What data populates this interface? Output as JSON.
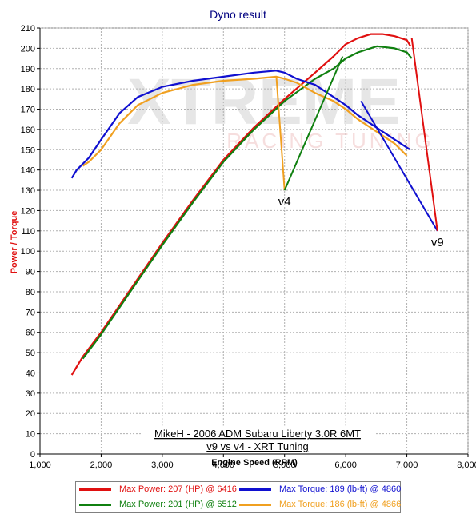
{
  "window": {
    "title": "Dyno result"
  },
  "chart_data": {
    "type": "line",
    "title": "Dyno result",
    "xlabel": "Engine Speed (RPM)",
    "ylabel": "Power / Torque",
    "xlim": [
      1000,
      8000
    ],
    "ylim": [
      0,
      210
    ],
    "xticks": [
      1000,
      2000,
      3000,
      4000,
      5000,
      6000,
      7000,
      8000
    ],
    "xtick_labels": [
      "1,000",
      "2,000",
      "3,000",
      "4,000",
      "5,000",
      "6,000",
      "7,000",
      "8,000"
    ],
    "yticks": [
      0,
      10,
      20,
      30,
      40,
      50,
      60,
      70,
      80,
      90,
      100,
      110,
      120,
      130,
      140,
      150,
      160,
      170,
      180,
      190,
      200,
      210
    ],
    "grid": true,
    "watermark": {
      "line1": "XTREME",
      "line2": "RACING TUNING"
    },
    "annotation_box": {
      "line1": "MikeH - 2006 ADM Subaru Liberty 3.0R 6MT",
      "line2": "v9 vs v4 - XRT Tuning"
    },
    "series": [
      {
        "name": "v9 power",
        "color": "#e01010",
        "x": [
          1520,
          1700,
          2000,
          2500,
          3000,
          3500,
          4000,
          4500,
          5000,
          5500,
          5800,
          6000,
          6200,
          6416,
          6600,
          6800,
          7000,
          7060
        ],
        "y": [
          39,
          48,
          60,
          82,
          104,
          125,
          145,
          161,
          175,
          188,
          196,
          202,
          205,
          207,
          207,
          206,
          204,
          201
        ]
      },
      {
        "name": "v4 power",
        "color": "#108010",
        "x": [
          1700,
          2000,
          2500,
          3000,
          3500,
          4000,
          4500,
          5000,
          5500,
          5800,
          6000,
          6200,
          6512,
          6800,
          7000,
          7080
        ],
        "y": [
          47,
          59,
          81,
          103,
          124,
          144,
          160,
          174,
          185,
          190,
          195,
          198,
          201,
          200,
          198,
          195
        ]
      },
      {
        "name": "v9 torque",
        "color": "#1010d0",
        "x": [
          1520,
          1600,
          1800,
          2000,
          2300,
          2600,
          3000,
          3500,
          4000,
          4500,
          4860,
          5000,
          5200,
          5500,
          5800,
          6000,
          6200,
          6500,
          6800,
          7000,
          7060
        ],
        "y": [
          136,
          140,
          146,
          155,
          168,
          176,
          181,
          184,
          186,
          188,
          189,
          188,
          185,
          182,
          176,
          172,
          167,
          161,
          155,
          151,
          150
        ]
      },
      {
        "name": "v4 torque",
        "color": "#f0a020",
        "x": [
          1700,
          1800,
          2000,
          2300,
          2600,
          3000,
          3500,
          4000,
          4500,
          4866,
          5000,
          5200,
          5500,
          5800,
          6000,
          6200,
          6500,
          6800,
          7000
        ],
        "y": [
          142,
          144,
          150,
          163,
          172,
          178,
          182,
          184,
          185,
          186,
          185,
          183,
          178,
          174,
          170,
          165,
          159,
          153,
          147
        ]
      }
    ],
    "point_labels": [
      {
        "text": "v4",
        "x": 5000,
        "y": 130,
        "color": "#000000",
        "leaders": [
          {
            "to_x": 4866,
            "to_y": 186,
            "color": "#f0a020"
          },
          {
            "to_x": 5950,
            "to_y": 196,
            "color": "#108010"
          }
        ]
      },
      {
        "text": "v9",
        "x": 7500,
        "y": 110,
        "color": "#000000",
        "leaders": [
          {
            "to_x": 6250,
            "to_y": 174,
            "color": "#1010d0"
          },
          {
            "to_x": 7080,
            "to_y": 205,
            "color": "#e01010"
          }
        ]
      }
    ],
    "legend": {
      "placement": "bottom",
      "entries": [
        {
          "label": "Max Power: 207 (HP) @ 6416",
          "color": "#e01010",
          "text_color": "#e01010"
        },
        {
          "label": "Max Torque: 189 (lb-ft) @ 4860",
          "color": "#1010d0",
          "text_color": "#1010d0"
        },
        {
          "label": "Max Power: 201 (HP) @ 6512",
          "color": "#108010",
          "text_color": "#108010"
        },
        {
          "label": "Max Torque: 186 (lb-ft) @ 4866",
          "color": "#f0a020",
          "text_color": "#f0a020"
        }
      ]
    }
  }
}
